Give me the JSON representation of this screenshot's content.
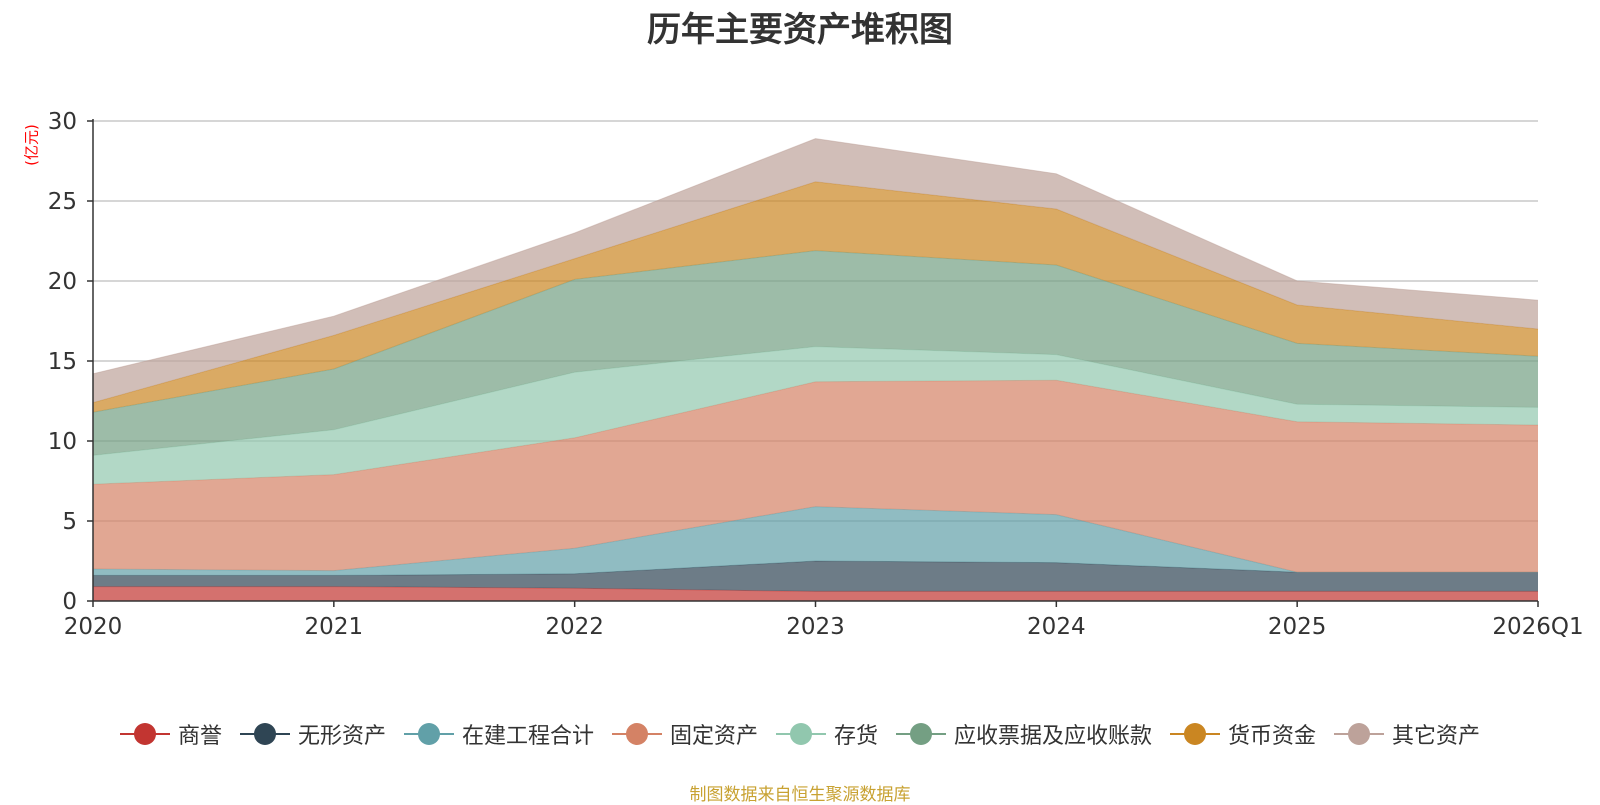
{
  "chart_data": {
    "type": "area",
    "stacked": true,
    "title": "历年主要资产堆积图",
    "ylabel": "(亿元)",
    "ylabel_color": "#ff0000",
    "categories": [
      "2020",
      "2021",
      "2022",
      "2023",
      "2024",
      "2025",
      "2026Q1"
    ],
    "ylim": [
      0,
      30
    ],
    "yticks": [
      0,
      5,
      10,
      15,
      20,
      25,
      30
    ],
    "grid": true,
    "legend_position": "bottom",
    "series": [
      {
        "name": "商誉",
        "color": "#c23531",
        "values": [
          0.9,
          0.9,
          0.8,
          0.6,
          0.6,
          0.6,
          0.6
        ]
      },
      {
        "name": "无形资产",
        "color": "#2f4554",
        "values": [
          0.7,
          0.7,
          0.9,
          1.9,
          1.8,
          1.2,
          1.2
        ]
      },
      {
        "name": "在建工程合计",
        "color": "#61a0a8",
        "values": [
          0.4,
          0.3,
          1.6,
          3.4,
          3.0,
          0.0,
          0.0
        ]
      },
      {
        "name": "固定资产",
        "color": "#d48265",
        "values": [
          5.3,
          6.0,
          6.9,
          7.8,
          8.4,
          9.4,
          9.2
        ]
      },
      {
        "name": "存货",
        "color": "#91c7ae",
        "values": [
          1.8,
          2.8,
          4.1,
          2.2,
          1.6,
          1.1,
          1.1
        ]
      },
      {
        "name": "应收票据及应收账款",
        "color": "#749f83",
        "values": [
          2.7,
          3.8,
          5.8,
          6.0,
          5.6,
          3.8,
          3.2
        ]
      },
      {
        "name": "货币资金",
        "color": "#ca8622",
        "values": [
          0.6,
          2.1,
          1.3,
          4.3,
          3.5,
          2.4,
          1.7
        ]
      },
      {
        "name": "其它资产",
        "color": "#bda29a",
        "values": [
          1.8,
          1.2,
          1.6,
          2.7,
          2.2,
          1.5,
          1.8
        ]
      }
    ]
  },
  "source_text": "制图数据来自恒生聚源数据库",
  "source_color": "#c8a232"
}
